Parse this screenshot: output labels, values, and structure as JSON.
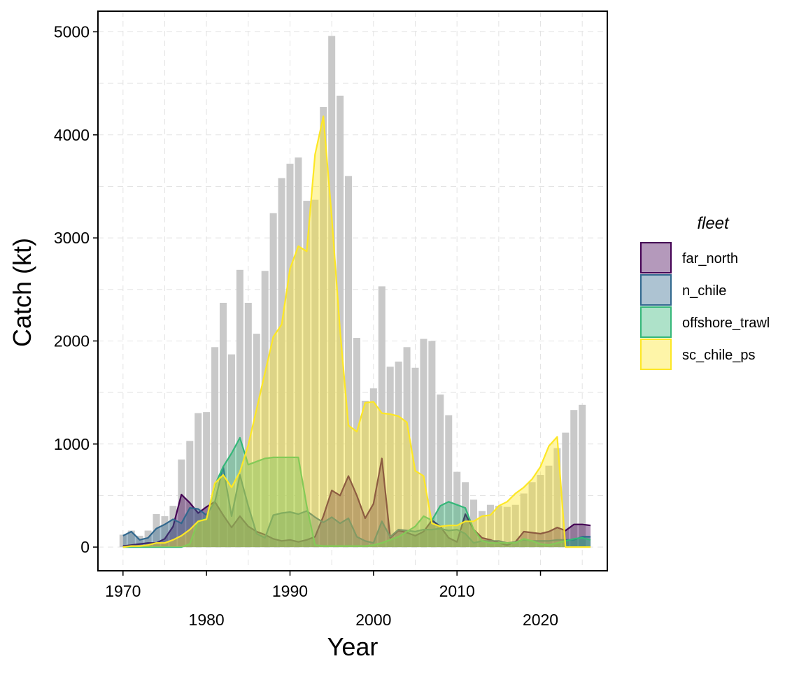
{
  "chart_data": {
    "type": "area",
    "xlabel": "Year",
    "ylabel": "Catch (kt)",
    "xlim": [
      1967,
      2028
    ],
    "ylim": [
      -230,
      5200
    ],
    "x_ticks": [
      1970,
      1980,
      1990,
      2000,
      2010,
      2020
    ],
    "y_ticks": [
      0,
      1000,
      2000,
      3000,
      4000,
      5000
    ],
    "grid": true,
    "legend_title": "fleet",
    "legend_position": "right",
    "total_bars": {
      "color": "#c9c9c9",
      "years": [
        1970,
        1971,
        1972,
        1973,
        1974,
        1975,
        1976,
        1977,
        1978,
        1979,
        1980,
        1981,
        1982,
        1983,
        1984,
        1985,
        1986,
        1987,
        1988,
        1989,
        1990,
        1991,
        1992,
        1993,
        1994,
        1995,
        1996,
        1997,
        1998,
        1999,
        2000,
        2001,
        2002,
        2003,
        2004,
        2005,
        2006,
        2007,
        2008,
        2009,
        2010,
        2011,
        2012,
        2013,
        2014,
        2015,
        2016,
        2017,
        2018,
        2019,
        2020,
        2021,
        2022,
        2023,
        2024,
        2025,
        2026
      ],
      "values": [
        120,
        160,
        110,
        160,
        320,
        300,
        400,
        850,
        1030,
        1300,
        1310,
        1940,
        2370,
        1870,
        2690,
        2370,
        2070,
        2680,
        3240,
        3580,
        3720,
        3780,
        3360,
        3370,
        4270,
        4960,
        4380,
        3600,
        2030,
        1420,
        1540,
        2530,
        1750,
        1800,
        1940,
        1740,
        2020,
        2000,
        1480,
        1280,
        730,
        630,
        460,
        350,
        410,
        400,
        390,
        410,
        520,
        630,
        700,
        790,
        960,
        1110,
        1330,
        1380,
        0
      ]
    },
    "series": [
      {
        "name": "far_north",
        "color": "#440154",
        "fill": "#440154",
        "x": [
          1970,
          1971,
          1972,
          1973,
          1974,
          1975,
          1976,
          1977,
          1978,
          1979,
          1980,
          1981,
          1982,
          1983,
          1984,
          1985,
          1986,
          1987,
          1988,
          1989,
          1990,
          1991,
          1992,
          1993,
          1994,
          1995,
          1996,
          1997,
          1998,
          1999,
          2000,
          2001,
          2002,
          2003,
          2004,
          2005,
          2006,
          2007,
          2008,
          2009,
          2010,
          2011,
          2012,
          2013,
          2014,
          2015,
          2016,
          2017,
          2018,
          2019,
          2020,
          2021,
          2022,
          2023,
          2024,
          2025,
          2026
        ],
        "values": [
          10,
          20,
          30,
          40,
          40,
          80,
          200,
          510,
          430,
          330,
          390,
          440,
          310,
          190,
          300,
          200,
          150,
          120,
          80,
          60,
          70,
          50,
          70,
          100,
          300,
          550,
          500,
          690,
          500,
          280,
          420,
          860,
          90,
          160,
          140,
          110,
          150,
          260,
          200,
          90,
          50,
          320,
          170,
          90,
          70,
          40,
          20,
          50,
          150,
          140,
          130,
          150,
          190,
          160,
          220,
          220,
          210
        ]
      },
      {
        "name": "n_chile",
        "color": "#31688e",
        "fill": "#31688e",
        "x": [
          1970,
          1971,
          1972,
          1973,
          1974,
          1975,
          1976,
          1977,
          1978,
          1979,
          1980,
          1981,
          1982,
          1983,
          1984,
          1985,
          1986,
          1987,
          1988,
          1989,
          1990,
          1991,
          1992,
          1993,
          1994,
          1995,
          1996,
          1997,
          1998,
          1999,
          2000,
          2001,
          2002,
          2003,
          2004,
          2005,
          2006,
          2007,
          2008,
          2009,
          2010,
          2011,
          2012,
          2013,
          2014,
          2015,
          2016,
          2017,
          2018,
          2019,
          2020,
          2021,
          2022,
          2023,
          2024,
          2025,
          2026
        ],
        "values": [
          110,
          150,
          70,
          90,
          180,
          220,
          270,
          230,
          380,
          370,
          310,
          440,
          780,
          300,
          700,
          400,
          130,
          90,
          310,
          330,
          340,
          320,
          350,
          290,
          240,
          290,
          230,
          280,
          100,
          60,
          40,
          250,
          100,
          170,
          160,
          150,
          170,
          170,
          180,
          160,
          170,
          130,
          40,
          60,
          60,
          60,
          40,
          50,
          70,
          60,
          60,
          60,
          70,
          70,
          70,
          100,
          100
        ]
      },
      {
        "name": "offshore_trawl",
        "color": "#35b779",
        "fill": "#35b779",
        "x": [
          1970,
          1971,
          1972,
          1973,
          1974,
          1975,
          1976,
          1977,
          1978,
          1979,
          1980,
          1981,
          1982,
          1983,
          1984,
          1985,
          1986,
          1987,
          1988,
          1989,
          1990,
          1991,
          1992,
          1993,
          1994,
          1995,
          1996,
          1997,
          1998,
          1999,
          2000,
          2001,
          2002,
          2003,
          2004,
          2005,
          2006,
          2007,
          2008,
          2009,
          2010,
          2011,
          2012,
          2013,
          2014,
          2015,
          2016,
          2017,
          2018,
          2019,
          2020,
          2021,
          2022,
          2023,
          2024,
          2025,
          2026
        ],
        "values": [
          0,
          0,
          0,
          0,
          0,
          0,
          0,
          0,
          30,
          250,
          280,
          600,
          780,
          910,
          1060,
          800,
          830,
          860,
          870,
          870,
          870,
          870,
          400,
          20,
          10,
          10,
          10,
          10,
          10,
          10,
          20,
          40,
          70,
          100,
          150,
          200,
          300,
          260,
          400,
          440,
          410,
          380,
          170,
          60,
          40,
          40,
          40,
          40,
          80,
          60,
          30,
          20,
          40,
          60,
          80,
          90,
          70
        ]
      },
      {
        "name": "sc_chile_ps",
        "color": "#fde725",
        "fill": "#fde725",
        "x": [
          1970,
          1971,
          1972,
          1973,
          1974,
          1975,
          1976,
          1977,
          1978,
          1979,
          1980,
          1981,
          1982,
          1983,
          1984,
          1985,
          1986,
          1987,
          1988,
          1989,
          1990,
          1991,
          1992,
          1993,
          1994,
          1995,
          1996,
          1997,
          1998,
          1999,
          2000,
          2001,
          2002,
          2003,
          2004,
          2005,
          2006,
          2007,
          2008,
          2009,
          2010,
          2011,
          2012,
          2013,
          2014,
          2015,
          2016,
          2017,
          2018,
          2019,
          2020,
          2021,
          2022,
          2023,
          2024,
          2025,
          2026
        ],
        "values": [
          0,
          10,
          10,
          20,
          40,
          40,
          70,
          110,
          170,
          250,
          270,
          620,
          700,
          580,
          730,
          990,
          1340,
          1690,
          2040,
          2160,
          2700,
          2920,
          2870,
          3810,
          4180,
          3200,
          2100,
          1180,
          1120,
          1400,
          1410,
          1300,
          1290,
          1270,
          1210,
          740,
          690,
          230,
          200,
          210,
          210,
          250,
          250,
          300,
          310,
          400,
          440,
          520,
          580,
          660,
          780,
          980,
          1070,
          0,
          0,
          0,
          0
        ]
      }
    ]
  }
}
